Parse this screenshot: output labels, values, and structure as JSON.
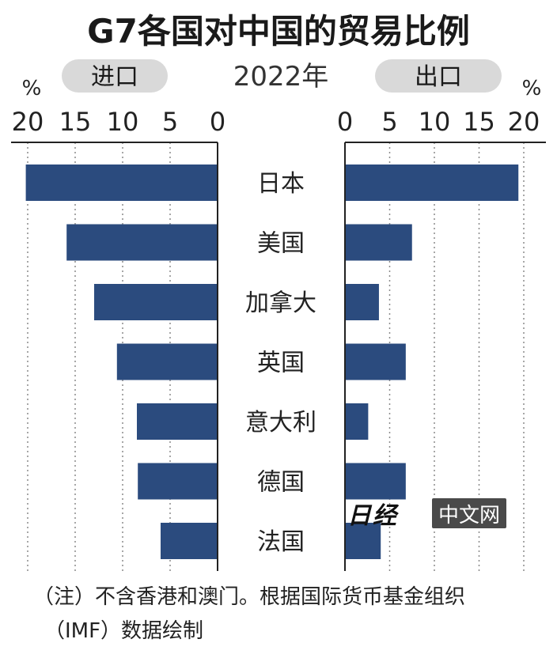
{
  "chart_data": {
    "type": "bar",
    "title": "G7各国对中国的贸易比例",
    "year": "2022年",
    "unit": "%",
    "categories": [
      "日本",
      "美国",
      "加拿大",
      "英国",
      "意大利",
      "德国",
      "法国"
    ],
    "series": [
      {
        "name": "进口",
        "values": [
          20.2,
          15.9,
          13.0,
          10.6,
          8.5,
          8.4,
          6.0
        ]
      },
      {
        "name": "出口",
        "values": [
          19.4,
          7.5,
          3.8,
          6.8,
          2.6,
          6.8,
          4.0
        ]
      }
    ],
    "import_ticks": [
      "20",
      "15",
      "10",
      "5",
      "0"
    ],
    "export_ticks": [
      "0",
      "5",
      "10",
      "15",
      "20"
    ],
    "xlim": [
      0,
      20
    ],
    "grid": true,
    "bar_color": "#2b4b7e"
  },
  "notes": {
    "line1": "（注）不含香港和澳门。根据国际货币基金组织",
    "line2": "（IMF）数据绘制"
  },
  "watermark": {
    "logo": "日经",
    "box": "中文网"
  }
}
